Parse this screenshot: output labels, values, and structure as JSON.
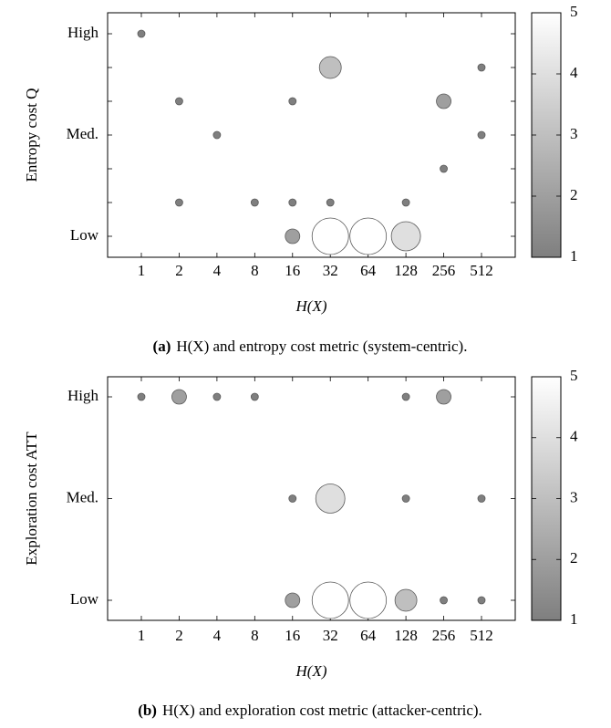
{
  "chart_data": [
    {
      "type": "bubble",
      "ylabel": "Entropy cost Q",
      "xlabel": "H(X)",
      "caption_label": "(a)",
      "caption": "H(X) and entropy cost metric (system-centric).",
      "x_categories": [
        1,
        2,
        4,
        8,
        16,
        32,
        64,
        128,
        256,
        512
      ],
      "y_categories": [
        "Low",
        null,
        null,
        "Med.",
        null,
        null,
        "High"
      ],
      "points": {
        "x": [
          1,
          2,
          2,
          4,
          8,
          16,
          16,
          16,
          32,
          32,
          32,
          64,
          128,
          128,
          256,
          256,
          512,
          512
        ],
        "y": [
          6,
          4,
          1,
          3,
          1,
          4,
          1,
          0,
          5,
          1,
          0,
          0,
          1,
          0,
          4,
          2,
          5,
          3
        ],
        "values": [
          1,
          1,
          1,
          1,
          1,
          1,
          1,
          2,
          3,
          1,
          5,
          5,
          1,
          4,
          2,
          1,
          1,
          1
        ]
      },
      "colorbar": {
        "lim": [
          1,
          5
        ],
        "ticks": [
          1,
          2,
          3,
          4,
          5
        ],
        "colors": [
          "#7f7f7f",
          "#ffffff"
        ]
      }
    },
    {
      "type": "bubble",
      "ylabel": "Exploration cost ATT",
      "xlabel": "H(X)",
      "caption_label": "(b)",
      "caption": "H(X) and exploration cost metric (attacker-centric).",
      "x_categories": [
        1,
        2,
        4,
        8,
        16,
        32,
        64,
        128,
        256,
        512
      ],
      "y_categories": [
        "Low",
        "Med.",
        "High"
      ],
      "points": {
        "x": [
          1,
          2,
          4,
          8,
          128,
          256,
          16,
          32,
          128,
          512,
          16,
          32,
          64,
          128,
          256,
          512
        ],
        "y": [
          2,
          2,
          2,
          2,
          2,
          2,
          1,
          1,
          1,
          1,
          0,
          0,
          0,
          0,
          0,
          0
        ],
        "values": [
          1,
          2,
          1,
          1,
          1,
          2,
          1,
          4,
          1,
          1,
          2,
          5,
          5,
          3,
          1,
          1
        ]
      },
      "colorbar": {
        "lim": [
          1,
          5
        ],
        "ticks": [
          1,
          2,
          3,
          4,
          5
        ],
        "colors": [
          "#7f7f7f",
          "#ffffff"
        ]
      }
    }
  ]
}
